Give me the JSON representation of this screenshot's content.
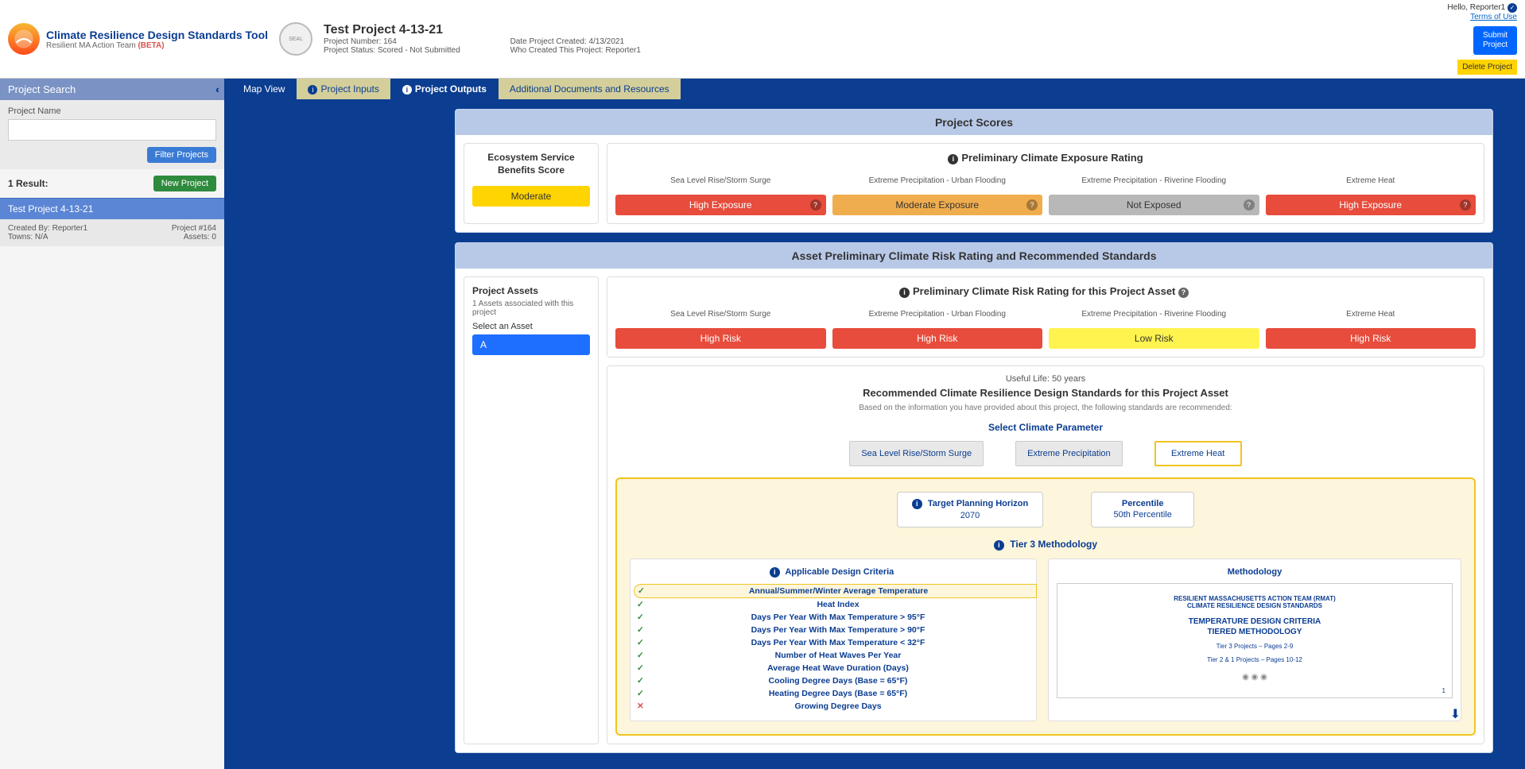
{
  "header": {
    "tool_title": "Climate Resilience Design Standards Tool",
    "tool_subtitle_prefix": "Resilient MA Action Team ",
    "beta": "(BETA)",
    "project_title": "Test Project 4-13-21",
    "project_number_label": "Project Number: 164",
    "project_status_label": "Project Status: Scored - Not Submitted",
    "date_created_label": "Date Project Created: 4/13/2021",
    "who_created_label": "Who Created This Project: Reporter1",
    "hello": "Hello, Reporter1",
    "terms": "Terms of Use",
    "submit": "Submit Project",
    "delete": "Delete Project"
  },
  "sidebar": {
    "search_header": "Project Search",
    "name_label": "Project Name",
    "name_value": "",
    "filter_btn": "Filter Projects",
    "results_label": "1 Result:",
    "new_project": "New Project",
    "result": {
      "title": "Test Project 4-13-21",
      "created_by": "Created By: Reporter1",
      "project_num": "Project #164",
      "towns": "Towns: N/A",
      "assets": "Assets: 0"
    }
  },
  "tabs": {
    "map": "Map View",
    "inputs": "Project Inputs",
    "outputs": "Project Outputs",
    "docs": "Additional Documents and Resources"
  },
  "scores": {
    "panel_title": "Project Scores",
    "eco_title": "Ecosystem Service Benefits Score",
    "eco_value": "Moderate",
    "exposure_title": "Preliminary Climate Exposure Rating",
    "cols": [
      {
        "label": "Sea Level Rise/Storm Surge",
        "value": "High Exposure",
        "color": "red"
      },
      {
        "label": "Extreme Precipitation - Urban Flooding",
        "value": "Moderate Exposure",
        "color": "orange"
      },
      {
        "label": "Extreme Precipitation - Riverine Flooding",
        "value": "Not Exposed",
        "color": "gray"
      },
      {
        "label": "Extreme Heat",
        "value": "High Exposure",
        "color": "red"
      }
    ]
  },
  "risk": {
    "panel_title": "Asset Preliminary Climate Risk Rating and Recommended Standards",
    "assets_title": "Project Assets",
    "assets_sub": "1 Assets associated with this project",
    "select_label": "Select an Asset",
    "asset_a": "A",
    "rating_title": "Preliminary Climate Risk Rating for this Project Asset",
    "cols": [
      {
        "label": "Sea Level Rise/Storm Surge",
        "value": "High Risk",
        "color": "red"
      },
      {
        "label": "Extreme Precipitation - Urban Flooding",
        "value": "High Risk",
        "color": "red"
      },
      {
        "label": "Extreme Precipitation - Riverine Flooding",
        "value": "Low Risk",
        "color": "lime"
      },
      {
        "label": "Extreme Heat",
        "value": "High Risk",
        "color": "red"
      }
    ],
    "useful_life": "Useful Life: 50 years",
    "std_title": "Recommended Climate Resilience Design Standards for this Project Asset",
    "std_sub": "Based on the information you have provided about this project, the following standards are recommended:",
    "param_title": "Select Climate Parameter",
    "param_tabs": [
      "Sea Level Rise/Storm Surge",
      "Extreme Precipitation",
      "Extreme Heat"
    ],
    "horizon_title": "Target Planning Horizon",
    "horizon_val": "2070",
    "percentile_title": "Percentile",
    "percentile_val": "50th Percentile",
    "tier_title": "Tier 3 Methodology",
    "criteria_title": "Applicable Design Criteria",
    "criteria": [
      {
        "ok": true,
        "label": "Annual/Summer/Winter Average Temperature",
        "active": true
      },
      {
        "ok": true,
        "label": "Heat Index"
      },
      {
        "ok": true,
        "label": "Days Per Year With Max Temperature > 95°F"
      },
      {
        "ok": true,
        "label": "Days Per Year With Max Temperature > 90°F"
      },
      {
        "ok": true,
        "label": "Days Per Year With Max Temperature < 32°F"
      },
      {
        "ok": true,
        "label": "Number of Heat Waves Per Year"
      },
      {
        "ok": true,
        "label": "Average Heat Wave Duration (Days)"
      },
      {
        "ok": true,
        "label": "Cooling Degree Days (Base = 65°F)"
      },
      {
        "ok": true,
        "label": "Heating Degree Days (Base = 65°F)"
      },
      {
        "ok": false,
        "label": "Growing Degree Days"
      }
    ],
    "method_title": "Methodology",
    "doc": {
      "line1": "RESILIENT MASSACHUSETTS ACTION TEAM (RMAT)",
      "line2": "CLIMATE RESILIENCE DESIGN STANDARDS",
      "title1": "TEMPERATURE DESIGN CRITERIA",
      "title2": "TIERED METHODOLOGY",
      "pages1": "Tier 3 Projects – Pages 2-9",
      "pages2": "Tier 2 & 1 Projects – Pages 10-12",
      "page_num": "1"
    }
  }
}
